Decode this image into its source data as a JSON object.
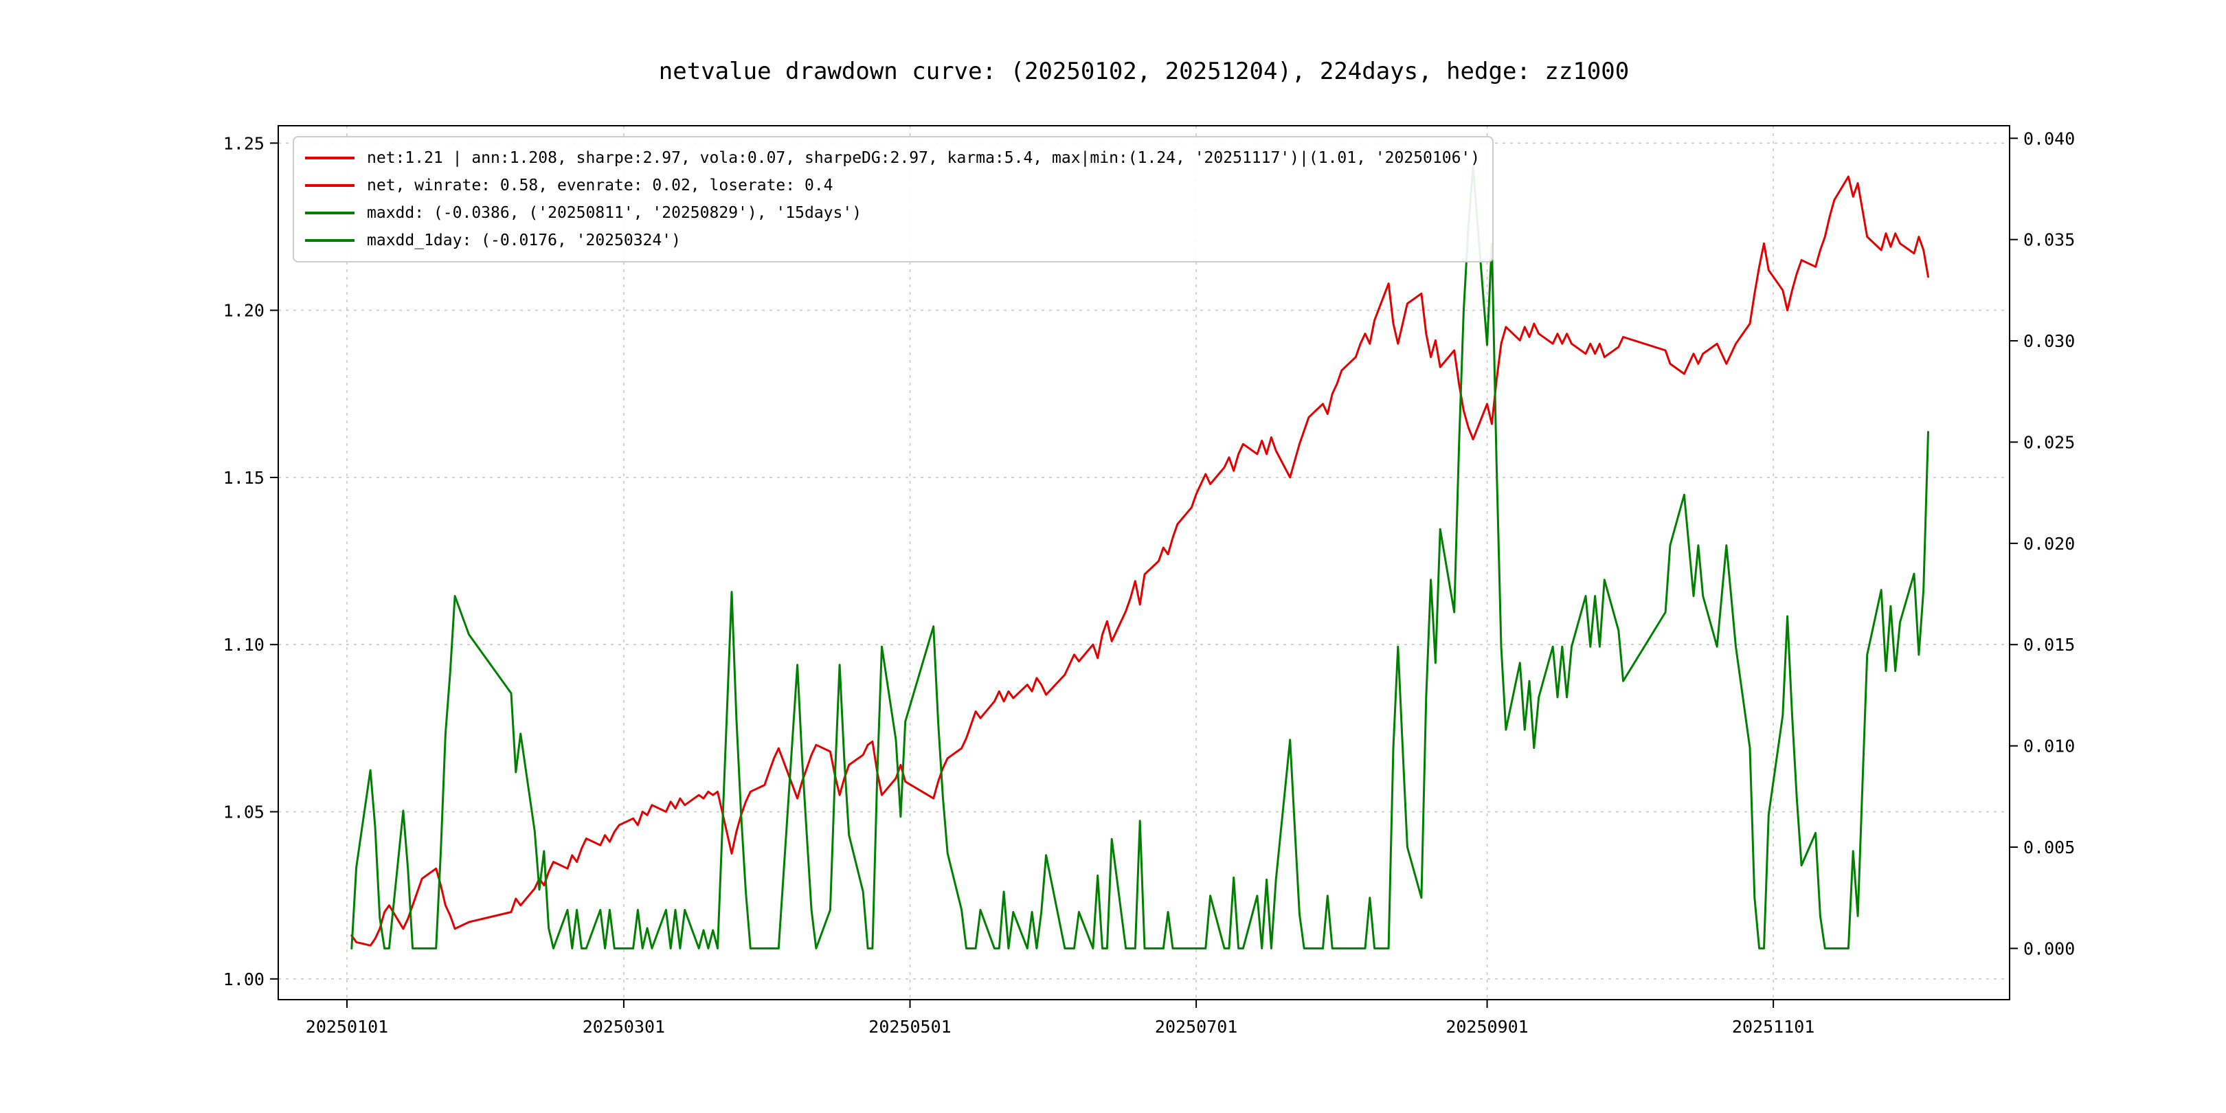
{
  "title": "netvalue drawdown curve: (20250102, 20251204), 224days, hedge: zz1000",
  "legend": {
    "items": [
      {
        "label": "net:1.21 | ann:1.208, sharpe:2.97, vola:0.07, sharpeDG:2.97, karma:5.4, max|min:(1.24, '20251117')|(1.01, '20250106')",
        "color": "#e50000"
      },
      {
        "label": "net, winrate: 0.58, evenrate: 0.02, loserate: 0.4",
        "color": "#e50000"
      },
      {
        "label": "maxdd: (-0.0386, ('20250811', '20250829'), '15days')",
        "color": "#008000"
      },
      {
        "label": "maxdd_1day: (-0.0176, '20250324')",
        "color": "#008000"
      }
    ]
  },
  "colors": {
    "net_line": "#e50000",
    "drawdown_line": "#008000",
    "grid": "#c8c8c8",
    "frame": "#000000",
    "text": "#000000"
  },
  "chart_data": {
    "type": "line",
    "title": "netvalue drawdown curve: (20250102, 20251204), 224days, hedge: zz1000",
    "xlabel": "",
    "ylabel_left": "",
    "ylabel_right": "",
    "grid": true,
    "legend_position": "upper left",
    "axes": {
      "x": {
        "lim": [
          -13.64,
          355.35
        ],
        "ticks_doy": [
          1,
          60,
          121,
          182,
          244,
          305
        ],
        "labels": [
          "20250101",
          "20250301",
          "20250501",
          "20250701",
          "20250901",
          "20251101"
        ]
      },
      "y_left": {
        "lim": [
          0.9938,
          1.2552
        ],
        "ticks": [
          1.0,
          1.05,
          1.1,
          1.15,
          1.2,
          1.25
        ],
        "labels": [
          "1.00",
          "1.05",
          "1.10",
          "1.15",
          "1.20",
          "1.25"
        ]
      },
      "y_right": {
        "lim": [
          -0.00253,
          0.04062
        ],
        "ticks": [
          0.0,
          0.005,
          0.01,
          0.015,
          0.02,
          0.025,
          0.03,
          0.035,
          0.04
        ],
        "labels": [
          "0.000",
          "0.005",
          "0.010",
          "0.015",
          "0.020",
          "0.025",
          "0.030",
          "0.035",
          "0.040"
        ]
      }
    },
    "year": "2025",
    "dates": [
      "0102",
      "0103",
      "0106",
      "0107",
      "0108",
      "0109",
      "0110",
      "0113",
      "0114",
      "0115",
      "0116",
      "0117",
      "0120",
      "0121",
      "0122",
      "0123",
      "0124",
      "0127",
      "0205",
      "0206",
      "0207",
      "0210",
      "0211",
      "0212",
      "0213",
      "0214",
      "0217",
      "0218",
      "0219",
      "0220",
      "0221",
      "0224",
      "0225",
      "0226",
      "0227",
      "0228",
      "0303",
      "0304",
      "0305",
      "0306",
      "0307",
      "0310",
      "0311",
      "0312",
      "0313",
      "0314",
      "0317",
      "0318",
      "0319",
      "0320",
      "0321",
      "0324",
      "0325",
      "0326",
      "0327",
      "0328",
      "0331",
      "0401",
      "0402",
      "0403",
      "0407",
      "0408",
      "0409",
      "0410",
      "0411",
      "0414",
      "0415",
      "0416",
      "0417",
      "0418",
      "0421",
      "0422",
      "0423",
      "0424",
      "0425",
      "0428",
      "0429",
      "0430",
      "0506",
      "0507",
      "0508",
      "0509",
      "0512",
      "0513",
      "0514",
      "0515",
      "0516",
      "0519",
      "0520",
      "0521",
      "0522",
      "0523",
      "0526",
      "0527",
      "0528",
      "0529",
      "0530",
      "0603",
      "0604",
      "0605",
      "0606",
      "0609",
      "0610",
      "0611",
      "0612",
      "0613",
      "0616",
      "0617",
      "0618",
      "0619",
      "0620",
      "0623",
      "0624",
      "0625",
      "0626",
      "0627",
      "0630",
      "0701",
      "0702",
      "0703",
      "0704",
      "0707",
      "0708",
      "0709",
      "0710",
      "0711",
      "0714",
      "0715",
      "0716",
      "0717",
      "0718",
      "0721",
      "0722",
      "0723",
      "0724",
      "0725",
      "0728",
      "0729",
      "0730",
      "0731",
      "0801",
      "0804",
      "0805",
      "0806",
      "0807",
      "0808",
      "0811",
      "0812",
      "0813",
      "0814",
      "0815",
      "0818",
      "0819",
      "0820",
      "0821",
      "0822",
      "0825",
      "0826",
      "0827",
      "0828",
      "0829",
      "0901",
      "0902",
      "0903",
      "0904",
      "0905",
      "0908",
      "0909",
      "0910",
      "0911",
      "0912",
      "0915",
      "0916",
      "0917",
      "0918",
      "0919",
      "0922",
      "0923",
      "0924",
      "0925",
      "0926",
      "0929",
      "0930",
      "1009",
      "1010",
      "1013",
      "1014",
      "1015",
      "1016",
      "1017",
      "1020",
      "1021",
      "1022",
      "1023",
      "1024",
      "1027",
      "1028",
      "1029",
      "1030",
      "1031",
      "1103",
      "1104",
      "1105",
      "1106",
      "1107",
      "1110",
      "1111",
      "1112",
      "1113",
      "1114",
      "1117",
      "1118",
      "1119",
      "1120",
      "1121",
      "1124",
      "1125",
      "1126",
      "1127",
      "1128",
      "1201",
      "1202",
      "1203",
      "1204"
    ],
    "series": [
      {
        "name": "net",
        "axis": "left",
        "color": "#e50000",
        "values": [
          1.013,
          1.011,
          1.01,
          1.012,
          1.015,
          1.02,
          1.022,
          1.015,
          1.018,
          1.022,
          1.026,
          1.03,
          1.033,
          1.028,
          1.022,
          1.019,
          1.015,
          1.017,
          1.02,
          1.024,
          1.022,
          1.027,
          1.03,
          1.028,
          1.032,
          1.035,
          1.033,
          1.037,
          1.035,
          1.039,
          1.042,
          1.04,
          1.043,
          1.041,
          1.044,
          1.046,
          1.048,
          1.046,
          1.05,
          1.049,
          1.052,
          1.05,
          1.053,
          1.051,
          1.054,
          1.052,
          1.055,
          1.054,
          1.056,
          1.055,
          1.056,
          1.0375,
          1.044,
          1.049,
          1.053,
          1.056,
          1.058,
          1.062,
          1.066,
          1.069,
          1.054,
          1.059,
          1.063,
          1.067,
          1.07,
          1.068,
          1.061,
          1.055,
          1.06,
          1.064,
          1.067,
          1.07,
          1.071,
          1.062,
          1.055,
          1.06,
          1.064,
          1.059,
          1.054,
          1.059,
          1.063,
          1.066,
          1.069,
          1.072,
          1.076,
          1.08,
          1.078,
          1.083,
          1.086,
          1.083,
          1.086,
          1.084,
          1.088,
          1.086,
          1.09,
          1.088,
          1.085,
          1.091,
          1.094,
          1.097,
          1.095,
          1.1,
          1.096,
          1.103,
          1.107,
          1.101,
          1.11,
          1.114,
          1.119,
          1.112,
          1.121,
          1.125,
          1.129,
          1.127,
          1.132,
          1.136,
          1.141,
          1.145,
          1.148,
          1.151,
          1.148,
          1.153,
          1.156,
          1.152,
          1.157,
          1.16,
          1.157,
          1.161,
          1.157,
          1.162,
          1.158,
          1.15,
          1.155,
          1.16,
          1.164,
          1.168,
          1.172,
          1.169,
          1.175,
          1.178,
          1.182,
          1.186,
          1.19,
          1.193,
          1.19,
          1.197,
          1.208,
          1.196,
          1.19,
          1.196,
          1.202,
          1.205,
          1.193,
          1.186,
          1.191,
          1.183,
          1.188,
          1.178,
          1.17,
          1.165,
          1.1614,
          1.172,
          1.166,
          1.179,
          1.19,
          1.195,
          1.191,
          1.195,
          1.192,
          1.196,
          1.193,
          1.19,
          1.193,
          1.19,
          1.193,
          1.19,
          1.187,
          1.19,
          1.187,
          1.19,
          1.186,
          1.189,
          1.192,
          1.188,
          1.184,
          1.181,
          1.184,
          1.187,
          1.184,
          1.187,
          1.19,
          1.187,
          1.184,
          1.187,
          1.19,
          1.196,
          1.205,
          1.213,
          1.22,
          1.212,
          1.206,
          1.2,
          1.206,
          1.211,
          1.215,
          1.213,
          1.218,
          1.222,
          1.228,
          1.233,
          1.24,
          1.234,
          1.238,
          1.23,
          1.222,
          1.218,
          1.223,
          1.219,
          1.223,
          1.22,
          1.217,
          1.222,
          1.218,
          1.21
        ]
      },
      {
        "name": "maxdd",
        "axis": "right",
        "color": "#008000",
        "values": [
          0.0,
          0.004,
          0.0088,
          0.006,
          0.0015,
          0.0,
          0.0,
          0.0068,
          0.0039,
          0.0,
          0.0,
          0.0,
          0.0,
          0.0048,
          0.0106,
          0.0136,
          0.0174,
          0.0155,
          0.0126,
          0.0087,
          0.0106,
          0.0058,
          0.0029,
          0.0048,
          0.001,
          0.0,
          0.0019,
          0.0,
          0.0019,
          0.0,
          0.0,
          0.0019,
          0.0,
          0.0019,
          0.0,
          0.0,
          0.0,
          0.0019,
          0.0,
          0.001,
          0.0,
          0.0019,
          0.0,
          0.0019,
          0.0,
          0.0019,
          0.0,
          0.0009,
          0.0,
          0.0009,
          0.0,
          0.0176,
          0.0114,
          0.0066,
          0.0028,
          0.0,
          0.0,
          0.0,
          0.0,
          0.0,
          0.014,
          0.0094,
          0.0056,
          0.0019,
          0.0,
          0.0019,
          0.0084,
          0.014,
          0.0093,
          0.0056,
          0.0028,
          0.0,
          0.0,
          0.0084,
          0.0149,
          0.0103,
          0.0065,
          0.0112,
          0.0159,
          0.0112,
          0.0075,
          0.0047,
          0.0019,
          0.0,
          0.0,
          0.0,
          0.0019,
          0.0,
          0.0,
          0.0028,
          0.0,
          0.0018,
          0.0,
          0.0018,
          0.0,
          0.0018,
          0.0046,
          0.0,
          0.0,
          0.0,
          0.0018,
          0.0,
          0.0036,
          0.0,
          0.0,
          0.0054,
          0.0,
          0.0,
          0.0,
          0.0063,
          0.0,
          0.0,
          0.0,
          0.0018,
          0.0,
          0.0,
          0.0,
          0.0,
          0.0,
          0.0,
          0.0026,
          0.0,
          0.0,
          0.0035,
          0.0,
          0.0,
          0.0026,
          0.0,
          0.0034,
          0.0,
          0.0034,
          0.0103,
          0.006,
          0.0017,
          0.0,
          0.0,
          0.0,
          0.0026,
          0.0,
          0.0,
          0.0,
          0.0,
          0.0,
          0.0,
          0.0025,
          0.0,
          0.0,
          0.0099,
          0.0149,
          0.0099,
          0.005,
          0.0025,
          0.0124,
          0.0182,
          0.0141,
          0.0207,
          0.0166,
          0.0248,
          0.0315,
          0.0356,
          0.0386,
          0.0298,
          0.0348,
          0.024,
          0.0149,
          0.0108,
          0.0141,
          0.0108,
          0.0132,
          0.0099,
          0.0124,
          0.0149,
          0.0124,
          0.0149,
          0.0124,
          0.0149,
          0.0174,
          0.0149,
          0.0174,
          0.0149,
          0.0182,
          0.0157,
          0.0132,
          0.0166,
          0.0199,
          0.0224,
          0.0199,
          0.0174,
          0.0199,
          0.0174,
          0.0149,
          0.0174,
          0.0199,
          0.0174,
          0.0149,
          0.0099,
          0.0025,
          0.0,
          0.0,
          0.0066,
          0.0115,
          0.0164,
          0.0115,
          0.0074,
          0.0041,
          0.0057,
          0.0016,
          0.0,
          0.0,
          0.0,
          0.0,
          0.0048,
          0.0016,
          0.0081,
          0.0145,
          0.0177,
          0.0137,
          0.0169,
          0.0137,
          0.0161,
          0.0185,
          0.0145,
          0.0177,
          0.0255
        ]
      }
    ]
  }
}
